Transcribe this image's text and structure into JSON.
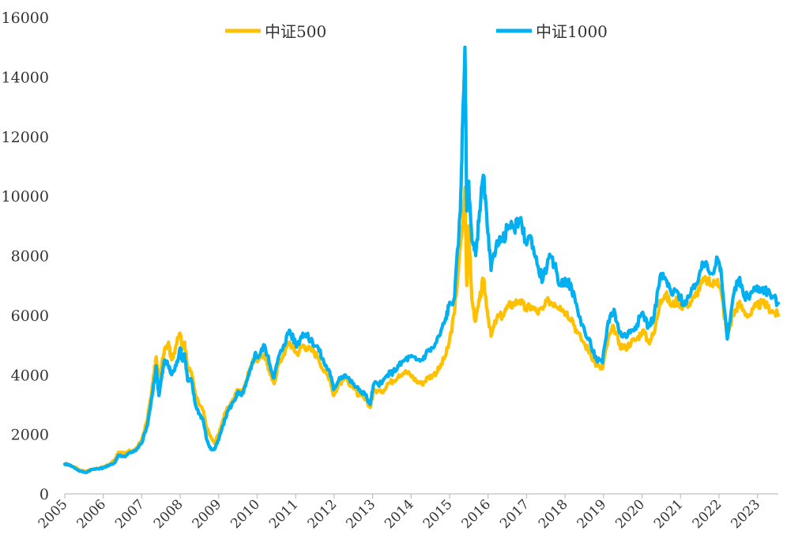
{
  "chart_data": {
    "type": "line",
    "title": "",
    "xlabel": "",
    "ylabel": "",
    "ylim": [
      0,
      16000
    ],
    "y_ticks": [
      "0",
      "2000",
      "4000",
      "6000",
      "8000",
      "10000",
      "12000",
      "14000",
      "16000"
    ],
    "x_ticks": [
      "2005",
      "2006",
      "2007",
      "2008",
      "2009",
      "2010",
      "2011",
      "2012",
      "2013",
      "2014",
      "2015",
      "2016",
      "2017",
      "2018",
      "2019",
      "2020",
      "2021",
      "2022",
      "2023"
    ],
    "grid": false,
    "legend_position": "top-center",
    "series": [
      {
        "name": "中证500",
        "color": "#FFC000",
        "points": [
          [
            2005.0,
            1000
          ],
          [
            2005.1,
            980
          ],
          [
            2005.25,
            900
          ],
          [
            2005.4,
            800
          ],
          [
            2005.55,
            760
          ],
          [
            2005.7,
            820
          ],
          [
            2005.85,
            860
          ],
          [
            2006.0,
            900
          ],
          [
            2006.15,
            980
          ],
          [
            2006.3,
            1150
          ],
          [
            2006.4,
            1400
          ],
          [
            2006.55,
            1350
          ],
          [
            2006.7,
            1450
          ],
          [
            2006.85,
            1500
          ],
          [
            2007.0,
            1800
          ],
          [
            2007.15,
            2500
          ],
          [
            2007.3,
            3800
          ],
          [
            2007.38,
            4600
          ],
          [
            2007.45,
            3600
          ],
          [
            2007.52,
            4300
          ],
          [
            2007.6,
            4900
          ],
          [
            2007.7,
            5100
          ],
          [
            2007.78,
            4500
          ],
          [
            2007.9,
            5000
          ],
          [
            2008.0,
            5400
          ],
          [
            2008.06,
            4900
          ],
          [
            2008.12,
            5100
          ],
          [
            2008.2,
            4200
          ],
          [
            2008.3,
            4100
          ],
          [
            2008.4,
            3300
          ],
          [
            2008.5,
            3000
          ],
          [
            2008.6,
            2800
          ],
          [
            2008.7,
            2200
          ],
          [
            2008.8,
            1900
          ],
          [
            2008.9,
            1700
          ],
          [
            2009.0,
            2000
          ],
          [
            2009.12,
            2500
          ],
          [
            2009.25,
            2900
          ],
          [
            2009.4,
            3200
          ],
          [
            2009.5,
            3500
          ],
          [
            2009.6,
            3400
          ],
          [
            2009.7,
            3700
          ],
          [
            2009.85,
            4300
          ],
          [
            2009.95,
            4600
          ],
          [
            2010.05,
            4500
          ],
          [
            2010.2,
            4700
          ],
          [
            2010.35,
            4000
          ],
          [
            2010.45,
            3700
          ],
          [
            2010.55,
            4300
          ],
          [
            2010.7,
            4700
          ],
          [
            2010.85,
            5100
          ],
          [
            2010.95,
            4900
          ],
          [
            2011.05,
            4700
          ],
          [
            2011.2,
            5000
          ],
          [
            2011.3,
            4900
          ],
          [
            2011.45,
            4800
          ],
          [
            2011.6,
            4600
          ],
          [
            2011.75,
            4100
          ],
          [
            2011.9,
            3900
          ],
          [
            2012.0,
            3300
          ],
          [
            2012.15,
            3700
          ],
          [
            2012.3,
            3900
          ],
          [
            2012.5,
            3600
          ],
          [
            2012.65,
            3300
          ],
          [
            2012.8,
            3200
          ],
          [
            2012.95,
            2900
          ],
          [
            2013.05,
            3500
          ],
          [
            2013.25,
            3400
          ],
          [
            2013.4,
            3700
          ],
          [
            2013.55,
            3800
          ],
          [
            2013.7,
            4000
          ],
          [
            2013.85,
            4100
          ],
          [
            2014.0,
            4000
          ],
          [
            2014.15,
            3800
          ],
          [
            2014.3,
            3700
          ],
          [
            2014.45,
            3900
          ],
          [
            2014.6,
            4000
          ],
          [
            2014.75,
            4200
          ],
          [
            2014.9,
            4600
          ],
          [
            2015.0,
            5000
          ],
          [
            2015.15,
            6100
          ],
          [
            2015.3,
            8300
          ],
          [
            2015.36,
            9000
          ],
          [
            2015.42,
            10300
          ],
          [
            2015.47,
            7000
          ],
          [
            2015.52,
            9000
          ],
          [
            2015.6,
            6500
          ],
          [
            2015.7,
            5800
          ],
          [
            2015.8,
            6500
          ],
          [
            2015.9,
            7200
          ],
          [
            2016.0,
            6200
          ],
          [
            2016.1,
            5300
          ],
          [
            2016.25,
            5900
          ],
          [
            2016.4,
            6000
          ],
          [
            2016.55,
            6300
          ],
          [
            2016.7,
            6400
          ],
          [
            2016.85,
            6500
          ],
          [
            2017.0,
            6200
          ],
          [
            2017.15,
            6300
          ],
          [
            2017.3,
            6100
          ],
          [
            2017.45,
            6200
          ],
          [
            2017.6,
            6500
          ],
          [
            2017.75,
            6400
          ],
          [
            2017.9,
            6300
          ],
          [
            2018.05,
            6100
          ],
          [
            2018.2,
            5900
          ],
          [
            2018.35,
            5400
          ],
          [
            2018.55,
            5000
          ],
          [
            2018.7,
            4700
          ],
          [
            2018.85,
            4300
          ],
          [
            2019.0,
            4200
          ],
          [
            2019.15,
            5200
          ],
          [
            2019.3,
            5600
          ],
          [
            2019.45,
            5000
          ],
          [
            2019.6,
            4900
          ],
          [
            2019.75,
            5100
          ],
          [
            2019.9,
            5200
          ],
          [
            2020.05,
            5500
          ],
          [
            2020.2,
            5100
          ],
          [
            2020.35,
            5400
          ],
          [
            2020.5,
            6500
          ],
          [
            2020.65,
            6700
          ],
          [
            2020.8,
            6300
          ],
          [
            2020.95,
            6500
          ],
          [
            2021.1,
            6300
          ],
          [
            2021.25,
            6400
          ],
          [
            2021.4,
            6600
          ],
          [
            2021.55,
            7000
          ],
          [
            2021.7,
            7200
          ],
          [
            2021.85,
            7000
          ],
          [
            2022.0,
            7200
          ],
          [
            2022.1,
            6700
          ],
          [
            2022.25,
            5300
          ],
          [
            2022.4,
            6000
          ],
          [
            2022.55,
            6400
          ],
          [
            2022.7,
            6100
          ],
          [
            2022.85,
            6000
          ],
          [
            2023.0,
            6300
          ],
          [
            2023.15,
            6400
          ],
          [
            2023.3,
            6300
          ],
          [
            2023.45,
            6100
          ],
          [
            2023.58,
            6000
          ]
        ]
      },
      {
        "name": "中证1000",
        "color": "#00B0F0",
        "points": [
          [
            2005.0,
            1000
          ],
          [
            2005.1,
            990
          ],
          [
            2005.25,
            880
          ],
          [
            2005.4,
            760
          ],
          [
            2005.55,
            720
          ],
          [
            2005.7,
            820
          ],
          [
            2005.85,
            840
          ],
          [
            2006.0,
            880
          ],
          [
            2006.15,
            950
          ],
          [
            2006.3,
            1050
          ],
          [
            2006.4,
            1300
          ],
          [
            2006.55,
            1250
          ],
          [
            2006.7,
            1400
          ],
          [
            2006.85,
            1450
          ],
          [
            2007.0,
            1700
          ],
          [
            2007.15,
            2300
          ],
          [
            2007.3,
            3500
          ],
          [
            2007.38,
            4300
          ],
          [
            2007.45,
            3300
          ],
          [
            2007.52,
            3900
          ],
          [
            2007.6,
            4500
          ],
          [
            2007.7,
            4300
          ],
          [
            2007.78,
            4000
          ],
          [
            2007.9,
            4300
          ],
          [
            2008.0,
            4900
          ],
          [
            2008.06,
            4500
          ],
          [
            2008.12,
            4700
          ],
          [
            2008.2,
            3800
          ],
          [
            2008.3,
            3800
          ],
          [
            2008.4,
            3000
          ],
          [
            2008.5,
            2700
          ],
          [
            2008.6,
            2500
          ],
          [
            2008.7,
            1800
          ],
          [
            2008.8,
            1500
          ],
          [
            2008.9,
            1500
          ],
          [
            2009.0,
            1800
          ],
          [
            2009.12,
            2300
          ],
          [
            2009.25,
            2800
          ],
          [
            2009.4,
            3100
          ],
          [
            2009.5,
            3400
          ],
          [
            2009.6,
            3300
          ],
          [
            2009.7,
            3600
          ],
          [
            2009.85,
            4200
          ],
          [
            2009.95,
            4700
          ],
          [
            2010.05,
            4600
          ],
          [
            2010.2,
            5000
          ],
          [
            2010.35,
            4300
          ],
          [
            2010.45,
            3900
          ],
          [
            2010.55,
            4500
          ],
          [
            2010.7,
            5000
          ],
          [
            2010.85,
            5500
          ],
          [
            2010.95,
            5200
          ],
          [
            2011.05,
            5000
          ],
          [
            2011.2,
            5400
          ],
          [
            2011.3,
            5300
          ],
          [
            2011.45,
            5100
          ],
          [
            2011.6,
            4900
          ],
          [
            2011.75,
            4400
          ],
          [
            2011.9,
            4100
          ],
          [
            2012.0,
            3500
          ],
          [
            2012.15,
            3900
          ],
          [
            2012.3,
            4000
          ],
          [
            2012.5,
            3700
          ],
          [
            2012.65,
            3500
          ],
          [
            2012.8,
            3400
          ],
          [
            2012.95,
            3000
          ],
          [
            2013.05,
            3700
          ],
          [
            2013.25,
            3700
          ],
          [
            2013.4,
            4000
          ],
          [
            2013.55,
            4100
          ],
          [
            2013.7,
            4300
          ],
          [
            2013.85,
            4500
          ],
          [
            2014.0,
            4600
          ],
          [
            2014.15,
            4500
          ],
          [
            2014.3,
            4500
          ],
          [
            2014.45,
            4800
          ],
          [
            2014.6,
            4900
          ],
          [
            2014.75,
            5300
          ],
          [
            2014.9,
            5800
          ],
          [
            2015.0,
            6300
          ],
          [
            2015.15,
            6600
          ],
          [
            2015.3,
            9500
          ],
          [
            2015.36,
            12500
          ],
          [
            2015.42,
            15000
          ],
          [
            2015.47,
            9500
          ],
          [
            2015.52,
            10500
          ],
          [
            2015.6,
            8500
          ],
          [
            2015.7,
            8000
          ],
          [
            2015.8,
            9500
          ],
          [
            2015.9,
            10700
          ],
          [
            2016.0,
            9000
          ],
          [
            2016.1,
            7500
          ],
          [
            2016.25,
            8500
          ],
          [
            2016.4,
            8500
          ],
          [
            2016.55,
            9000
          ],
          [
            2016.7,
            8900
          ],
          [
            2016.85,
            9200
          ],
          [
            2017.0,
            8500
          ],
          [
            2017.15,
            8600
          ],
          [
            2017.3,
            7700
          ],
          [
            2017.45,
            7200
          ],
          [
            2017.6,
            7900
          ],
          [
            2017.75,
            7700
          ],
          [
            2017.9,
            7000
          ],
          [
            2018.05,
            7200
          ],
          [
            2018.2,
            6900
          ],
          [
            2018.35,
            6200
          ],
          [
            2018.55,
            5400
          ],
          [
            2018.7,
            5000
          ],
          [
            2018.85,
            4500
          ],
          [
            2019.0,
            4400
          ],
          [
            2019.15,
            5800
          ],
          [
            2019.3,
            6200
          ],
          [
            2019.45,
            5400
          ],
          [
            2019.6,
            5300
          ],
          [
            2019.75,
            5500
          ],
          [
            2019.9,
            5700
          ],
          [
            2020.05,
            6100
          ],
          [
            2020.2,
            5600
          ],
          [
            2020.35,
            6000
          ],
          [
            2020.5,
            7300
          ],
          [
            2020.65,
            7200
          ],
          [
            2020.8,
            6700
          ],
          [
            2020.95,
            6800
          ],
          [
            2021.1,
            6400
          ],
          [
            2021.25,
            6600
          ],
          [
            2021.4,
            6900
          ],
          [
            2021.55,
            7500
          ],
          [
            2021.7,
            7800
          ],
          [
            2021.85,
            7400
          ],
          [
            2022.0,
            7900
          ],
          [
            2022.1,
            7300
          ],
          [
            2022.25,
            5200
          ],
          [
            2022.4,
            6600
          ],
          [
            2022.55,
            7200
          ],
          [
            2022.7,
            6600
          ],
          [
            2022.85,
            6700
          ],
          [
            2023.0,
            6900
          ],
          [
            2023.15,
            6900
          ],
          [
            2023.3,
            6800
          ],
          [
            2023.45,
            6600
          ],
          [
            2023.58,
            6400
          ]
        ]
      }
    ]
  }
}
